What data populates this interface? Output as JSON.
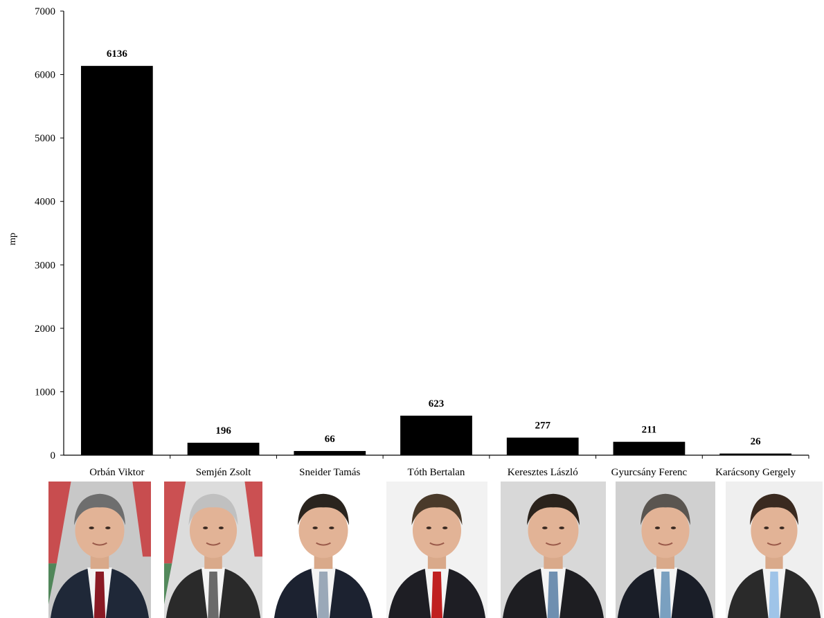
{
  "chart_data": {
    "type": "bar",
    "categories": [
      "Orbán Viktor",
      "Semjén Zsolt",
      "Sneider Tamás",
      "Tóth Bertalan",
      "Keresztes László",
      "Gyurcsány Ferenc",
      "Karácsony Gergely"
    ],
    "values": [
      6136,
      196,
      66,
      623,
      277,
      211,
      26
    ],
    "data_labels": [
      "6136",
      "196",
      "66",
      "623",
      "277",
      "211",
      "26"
    ],
    "ylabel": "mp",
    "xlabel": "",
    "ylim": [
      0,
      7000
    ],
    "yticks": [
      0,
      1000,
      2000,
      3000,
      4000,
      5000,
      6000,
      7000
    ],
    "bar_color": "#000000",
    "grid": false,
    "legend": "none"
  },
  "photos": [
    {
      "name": "portrait-orban-viktor",
      "bg": "#c8c8c8",
      "suit": "#1f2838",
      "tie": "#8a1a24",
      "hair": "#6e6e6e",
      "flag": true
    },
    {
      "name": "portrait-semjen-zsolt",
      "bg": "#dcdcdc",
      "suit": "#2a2a2a",
      "tie": "#6a6a6a",
      "hair": "#c0c0c0",
      "flag": true
    },
    {
      "name": "portrait-sneider-tamas",
      "bg": "#ffffff",
      "suit": "#1c2230",
      "tie": "#9aa8b8",
      "hair": "#2a241e",
      "flag": false
    },
    {
      "name": "portrait-toth-bertalan",
      "bg": "#f2f2f2",
      "suit": "#1e1e24",
      "tie": "#c02020",
      "hair": "#4a3a2a",
      "flag": false
    },
    {
      "name": "portrait-keresztes-laszlo",
      "bg": "#d8d8d8",
      "suit": "#1e1e22",
      "tie": "#6f8fb0",
      "hair": "#2b231c",
      "flag": false
    },
    {
      "name": "portrait-gyurcsany-ferenc",
      "bg": "#d0d0d0",
      "suit": "#1a1e28",
      "tie": "#7aa0c0",
      "hair": "#5a5550",
      "flag": false
    },
    {
      "name": "portrait-karacsony-gergely",
      "bg": "#efefef",
      "suit": "#2a2a2a",
      "tie": "#9fc4e8",
      "hair": "#3a2a20",
      "flag": false
    }
  ]
}
